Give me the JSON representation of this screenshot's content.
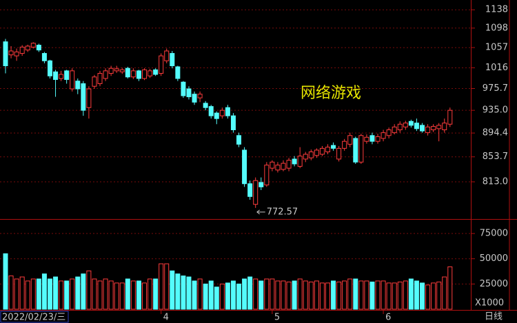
{
  "chart_data": [
    {
      "type": "candlestick",
      "categories": [
        "2022/02/23/三",
        null,
        null,
        null,
        null,
        null,
        null,
        null,
        null,
        null,
        null,
        null,
        null,
        null,
        null,
        null,
        null,
        null,
        null,
        null,
        null,
        null,
        null,
        null,
        null,
        null,
        null,
        null,
        "4",
        null,
        null,
        null,
        null,
        null,
        null,
        null,
        null,
        null,
        null,
        null,
        null,
        null,
        null,
        null,
        null,
        null,
        null,
        null,
        "5",
        null,
        null,
        null,
        null,
        null,
        null,
        null,
        null,
        null,
        null,
        null,
        null,
        null,
        null,
        null,
        null,
        null,
        null,
        null,
        "6",
        null,
        null,
        null,
        null,
        null,
        null,
        null,
        null,
        null,
        null,
        null,
        null
      ],
      "open": [
        1069,
        1042,
        1040,
        1045,
        1052,
        1058,
        1062,
        1045,
        1030,
        1008,
        995,
        1010,
        975,
        990,
        985,
        940,
        980,
        985,
        995,
        1005,
        1010,
        1008,
        1015,
        998,
        1010,
        995,
        1000,
        1012,
        1005,
        1030,
        1045,
        1018,
        988,
        975,
        965,
        958,
        948,
        942,
        930,
        925,
        940,
        925,
        890,
        865,
        810,
        778,
        812,
        808,
        835,
        832,
        833,
        835,
        850,
        838,
        850,
        852,
        856,
        858,
        862,
        873,
        850,
        868,
        875,
        885,
        845,
        880,
        890,
        880,
        885,
        890,
        895,
        900,
        905,
        915,
        912,
        908,
        895,
        900,
        902,
        900,
        910
      ],
      "high": [
        1075,
        1060,
        1055,
        1062,
        1063,
        1068,
        1065,
        1048,
        1032,
        1012,
        1010,
        1012,
        1015,
        995,
        990,
        980,
        1002,
        1010,
        1015,
        1020,
        1020,
        1016,
        1018,
        1015,
        1012,
        1015,
        1014,
        1015,
        1045,
        1055,
        1050,
        1020,
        990,
        980,
        970,
        970,
        952,
        945,
        933,
        940,
        945,
        930,
        895,
        870,
        815,
        820,
        820,
        845,
        848,
        845,
        848,
        852,
        855,
        870,
        862,
        866,
        868,
        872,
        875,
        878,
        872,
        884,
        895,
        888,
        893,
        892,
        895,
        893,
        900,
        904,
        910,
        915,
        916,
        918,
        920,
        912,
        910,
        910,
        912,
        920,
        940
      ],
      "low": [
        1005,
        1035,
        1030,
        1040,
        1048,
        1055,
        1048,
        1025,
        995,
        960,
        990,
        985,
        970,
        965,
        925,
        920,
        975,
        980,
        990,
        1000,
        1006,
        1004,
        995,
        994,
        990,
        992,
        996,
        1000,
        1000,
        1025,
        1015,
        990,
        958,
        955,
        945,
        950,
        935,
        920,
        910,
        920,
        920,
        895,
        870,
        805,
        785,
        772.57,
        800,
        805,
        830,
        828,
        830,
        830,
        838,
        835,
        845,
        848,
        852,
        855,
        858,
        864,
        846,
        864,
        870,
        842,
        842,
        876,
        875,
        876,
        880,
        885,
        892,
        895,
        900,
        904,
        898,
        895,
        890,
        896,
        880,
        895,
        905
      ],
      "close": [
        1020,
        1050,
        1048,
        1058,
        1060,
        1066,
        1052,
        1030,
        1000,
        993,
        1003,
        993,
        1010,
        975,
        935,
        975,
        998,
        1005,
        1010,
        1015,
        1014,
        1012,
        998,
        1010,
        995,
        1012,
        1010,
        1003,
        1040,
        1050,
        1020,
        995,
        962,
        960,
        950,
        965,
        940,
        925,
        920,
        935,
        925,
        900,
        875,
        810,
        790,
        815,
        805,
        840,
        845,
        840,
        843,
        848,
        842,
        855,
        858,
        862,
        865,
        868,
        870,
        868,
        868,
        880,
        890,
        845,
        890,
        887,
        880,
        888,
        895,
        900,
        905,
        910,
        912,
        908,
        902,
        898,
        905,
        906,
        908,
        912,
        935
      ],
      "up_color": "#ff3c3c",
      "down_color": "#54fcfc",
      "ylim": [
        756,
        1160
      ],
      "log_scale": true,
      "grid": true,
      "yticks": [
        1138,
        1098,
        1057,
        1016,
        975.7,
        {
          "value": 935,
          "label": "935.0"
        },
        894.4,
        853.7,
        {
          "value": 813,
          "label": "813.0"
        }
      ],
      "annotation": "网络游戏",
      "period": "日线"
    },
    {
      "type": "bar",
      "values": [
        55000,
        33000,
        30000,
        32000,
        28000,
        30000,
        30000,
        35000,
        30000,
        32000,
        28000,
        28000,
        30000,
        32000,
        35000,
        38000,
        30000,
        28000,
        30000,
        28000,
        26000,
        26000,
        30000,
        28000,
        28000,
        26000,
        30000,
        30000,
        45000,
        45000,
        38000,
        35000,
        33000,
        32000,
        28000,
        30000,
        25000,
        28000,
        22000,
        25000,
        26000,
        28000,
        25000,
        30000,
        32000,
        30000,
        28000,
        30000,
        30000,
        28000,
        28000,
        27000,
        28000,
        30000,
        28000,
        27000,
        28000,
        26000,
        26000,
        28000,
        27000,
        28000,
        30000,
        30000,
        28000,
        28000,
        27000,
        28000,
        28000,
        26000,
        26000,
        27000,
        28000,
        30000,
        28000,
        26000,
        24000,
        26000,
        27000,
        32000,
        42000
      ],
      "ylim": [
        0,
        88000
      ],
      "yticks": [
        25000,
        50000,
        75000
      ],
      "unit_label": "X1000"
    }
  ]
}
